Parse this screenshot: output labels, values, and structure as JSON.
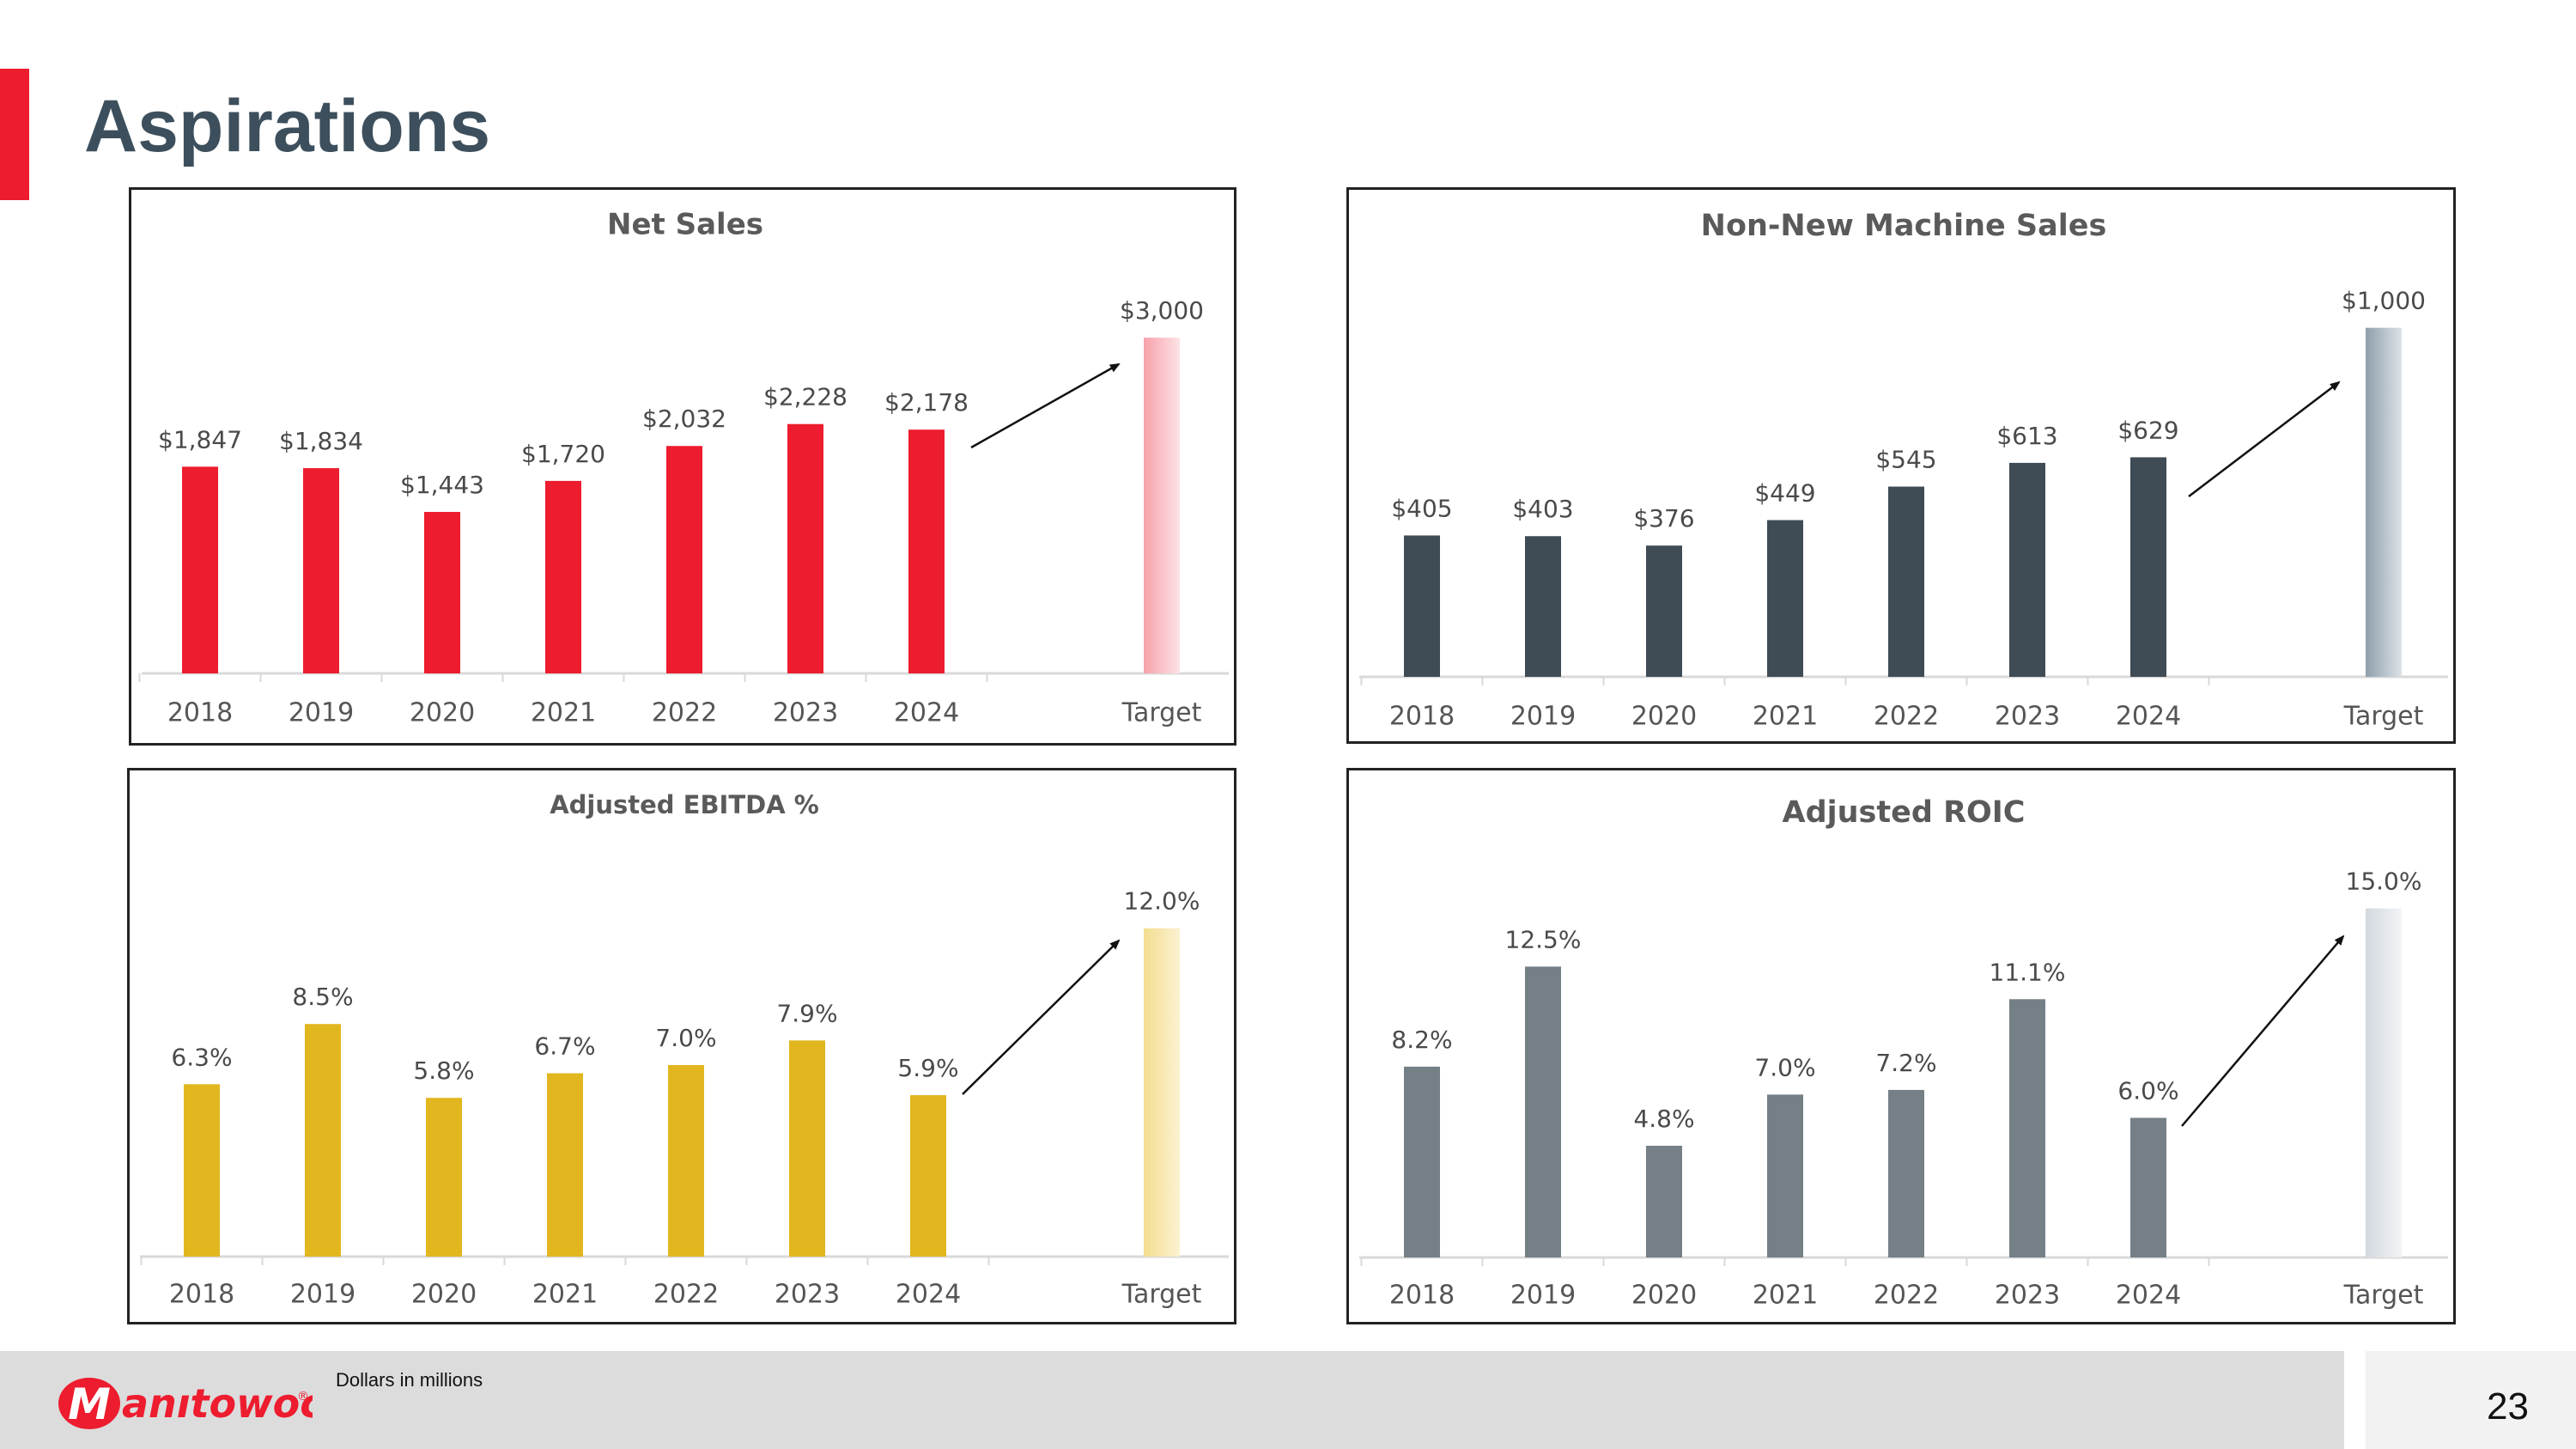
{
  "page": {
    "title": "Aspirations",
    "footnote": "Dollars in millions",
    "page_number": "23",
    "brand": "Manitowoc",
    "brand_mark": "®"
  },
  "colors": {
    "accent": "#ED1C2E",
    "title": "#3D4F5C",
    "footer": "#DCDCDC"
  },
  "chart_data": [
    {
      "id": "net-sales",
      "type": "bar",
      "title": "Net Sales",
      "categories": [
        "2018",
        "2019",
        "2020",
        "2021",
        "2022",
        "2023",
        "2024",
        "Target"
      ],
      "values": [
        1847,
        1834,
        1443,
        1720,
        2032,
        2228,
        2178,
        3000
      ],
      "labels": [
        "$1,847",
        "$1,834",
        "$1,443",
        "$1,720",
        "$2,032",
        "$2,228",
        "$2,178",
        "$3,000"
      ],
      "ylim": [
        0,
        3400
      ],
      "color": "#ED1C2E",
      "target_gradient": [
        "#F7A1AA",
        "#FCE3E6"
      ],
      "xlabel": "",
      "ylabel": "",
      "grid": false
    },
    {
      "id": "non-new-machine-sales",
      "type": "bar",
      "title": "Non-New Machine Sales",
      "categories": [
        "2018",
        "2019",
        "2020",
        "2021",
        "2022",
        "2023",
        "2024",
        "Target"
      ],
      "values": [
        405,
        403,
        376,
        449,
        545,
        613,
        629,
        1000
      ],
      "labels": [
        "$405",
        "$403",
        "$376",
        "$449",
        "$545",
        "$613",
        "$629",
        "$1,000"
      ],
      "ylim": [
        0,
        1100
      ],
      "color": "#3F4B55",
      "target_gradient": [
        "#8E9FAC",
        "#DCE2E7"
      ],
      "xlabel": "",
      "ylabel": "",
      "grid": false
    },
    {
      "id": "adjusted-ebitda",
      "type": "bar",
      "title": "Adjusted EBITDA %",
      "categories": [
        "2018",
        "2019",
        "2020",
        "2021",
        "2022",
        "2023",
        "2024",
        "Target"
      ],
      "values": [
        6.3,
        8.5,
        5.8,
        6.7,
        7.0,
        7.9,
        5.9,
        12.0
      ],
      "labels": [
        "6.3%",
        "8.5%",
        "5.8%",
        "6.7%",
        "7.0%",
        "7.9%",
        "5.9%",
        "12.0%"
      ],
      "ylim": [
        0,
        14
      ],
      "color": "#E2B61E",
      "target_gradient": [
        "#F3DD8E",
        "#FBF2D2"
      ],
      "xlabel": "",
      "ylabel": "",
      "grid": false
    },
    {
      "id": "adjusted-roic",
      "type": "bar",
      "title": "Adjusted ROIC",
      "categories": [
        "2018",
        "2019",
        "2020",
        "2021",
        "2022",
        "2023",
        "2024",
        "Target"
      ],
      "values": [
        8.2,
        12.5,
        4.8,
        7.0,
        7.2,
        11.1,
        6.0,
        15.0
      ],
      "labels": [
        "8.2%",
        "12.5%",
        "4.8%",
        "7.0%",
        "7.2%",
        "11.1%",
        "6.0%",
        "15.0%"
      ],
      "ylim": [
        0,
        16.5
      ],
      "color": "#757F86",
      "target_gradient": [
        "#D2D8DE",
        "#F2F4F6"
      ],
      "xlabel": "",
      "ylabel": "",
      "grid": false
    }
  ]
}
